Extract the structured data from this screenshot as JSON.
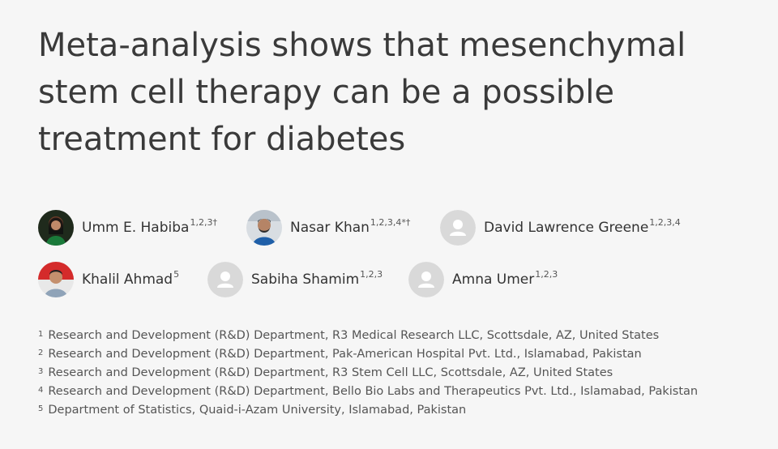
{
  "title": "Meta-analysis shows that mesenchymal stem cell therapy can be a possible treatment for diabetes",
  "authors": [
    {
      "name": "Umm E. Habiba",
      "sup": "1,2,3†",
      "avatar": "photo"
    },
    {
      "name": "Nasar Khan",
      "sup": "1,2,3,4*†",
      "avatar": "photo"
    },
    {
      "name": "David Lawrence Greene",
      "sup": "1,2,3,4",
      "avatar": "placeholder"
    },
    {
      "name": "Khalil Ahmad",
      "sup": "5",
      "avatar": "photo"
    },
    {
      "name": "Sabiha Shamim",
      "sup": "1,2,3",
      "avatar": "placeholder"
    },
    {
      "name": "Amna Umer",
      "sup": "1,2,3",
      "avatar": "placeholder"
    }
  ],
  "affiliations": [
    {
      "num": "1",
      "text": "Research and Development (R&D) Department, R3 Medical Research LLC, Scottsdale, AZ, United States"
    },
    {
      "num": "2",
      "text": "Research and Development (R&D) Department, Pak-American Hospital Pvt. Ltd., Islamabad, Pakistan"
    },
    {
      "num": "3",
      "text": "Research and Development (R&D) Department, R3 Stem Cell LLC, Scottsdale, AZ, United States"
    },
    {
      "num": "4",
      "text": "Research and Development (R&D) Department, Bello Bio Labs and Therapeutics Pvt. Ltd., Islamabad, Pakistan"
    },
    {
      "num": "5",
      "text": "Department of Statistics, Quaid-i-Azam University, Islamabad, Pakistan"
    }
  ]
}
